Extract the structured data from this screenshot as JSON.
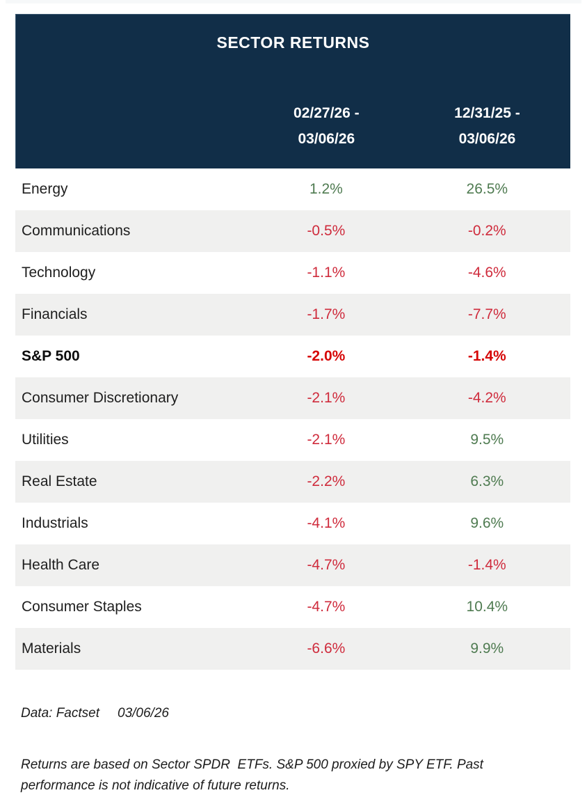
{
  "header": {
    "title": "SECTOR RETURNS",
    "col_week": "02/27/26 -\n03/06/26",
    "col_ytd": "12/31/25 -\n03/06/26"
  },
  "rows": [
    {
      "sector": "Energy",
      "week": "1.2%",
      "ytd": "26.5%"
    },
    {
      "sector": "Communications",
      "week": "-0.5%",
      "ytd": "-0.2%"
    },
    {
      "sector": "Technology",
      "week": "-1.1%",
      "ytd": "-4.6%"
    },
    {
      "sector": "Financials",
      "week": "-1.7%",
      "ytd": "-7.7%"
    },
    {
      "sector": "S&P 500",
      "week": "-2.0%",
      "ytd": "-1.4%",
      "emphasis": true
    },
    {
      "sector": "Consumer Discretionary",
      "week": "-2.1%",
      "ytd": "-4.2%"
    },
    {
      "sector": "Utilities",
      "week": "-2.1%",
      "ytd": "9.5%"
    },
    {
      "sector": "Real Estate",
      "week": "-2.2%",
      "ytd": "6.3%"
    },
    {
      "sector": "Industrials",
      "week": "-4.1%",
      "ytd": "9.6%"
    },
    {
      "sector": "Health Care",
      "week": "-4.7%",
      "ytd": "-1.4%"
    },
    {
      "sector": "Consumer Staples",
      "week": "-4.7%",
      "ytd": "10.4%"
    },
    {
      "sector": "Materials",
      "week": "-6.6%",
      "ytd": "9.9%"
    }
  ],
  "footer": {
    "source_label": "Data: Factset",
    "source_date": "03/06/26",
    "disclaimer": "Returns are based on Sector SPDR  ETFs. S&P 500 proxied by SPY ETF. Past performance is not indicative of future returns."
  },
  "colors": {
    "header_bg": "#112e48",
    "row_alt_bg": "#f0f0ef",
    "positive": "#4f7b51",
    "negative": "#cf2b3c",
    "negative_emphasis": "#d60606",
    "header_text": "#ffffff"
  },
  "chart_data": {
    "type": "table",
    "title": "SECTOR RETURNS",
    "columns": [
      "Sector",
      "02/27/26 - 03/06/26 (%)",
      "12/31/25 - 03/06/26 (%)"
    ],
    "rows": [
      [
        "Energy",
        1.2,
        26.5
      ],
      [
        "Communications",
        -0.5,
        -0.2
      ],
      [
        "Technology",
        -1.1,
        -4.6
      ],
      [
        "Financials",
        -1.7,
        -7.7
      ],
      [
        "S&P 500",
        -2.0,
        -1.4
      ],
      [
        "Consumer Discretionary",
        -2.1,
        -4.2
      ],
      [
        "Utilities",
        -2.1,
        9.5
      ],
      [
        "Real Estate",
        -2.2,
        6.3
      ],
      [
        "Industrials",
        -4.1,
        9.6
      ],
      [
        "Health Care",
        -4.7,
        -1.4
      ],
      [
        "Consumer Staples",
        -4.7,
        10.4
      ],
      [
        "Materials",
        -6.6,
        9.9
      ]
    ],
    "notes": [
      "Data: Factset 03/06/26",
      "Returns are based on Sector SPDR ETFs. S&P 500 proxied by SPY ETF. Past performance is not indicative of future returns."
    ]
  }
}
